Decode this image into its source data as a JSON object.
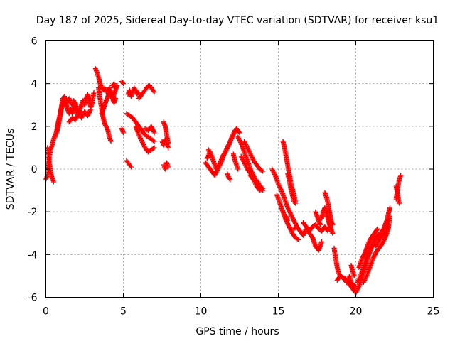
{
  "chart_data": {
    "type": "scatter",
    "title": "Day 187 of 2025, Sidereal Day-to-day VTEC variation (SDTVAR) for receiver ksu1",
    "xlabel": "GPS time / hours",
    "ylabel": "SDTVAR / TECUs",
    "xlim": [
      0,
      25
    ],
    "ylim": [
      -6,
      6
    ],
    "x_ticks": [
      0,
      5,
      10,
      15,
      20,
      25
    ],
    "y_ticks": [
      -6,
      -4,
      -2,
      0,
      2,
      4,
      6
    ],
    "x_tick_labels": [
      "0",
      "5",
      "10",
      "15",
      "20",
      "25"
    ],
    "y_tick_labels": [
      "-6",
      "-4",
      "-2",
      "0",
      "2",
      "4",
      "6"
    ],
    "grid": true,
    "marker": "+",
    "series": [
      {
        "name": "SDTVAR",
        "color": "#ff0000",
        "segments": [
          {
            "x": [
              0.0,
              0.1,
              0.2,
              0.3,
              0.4,
              0.5,
              0.6,
              0.7,
              0.8,
              0.9,
              1.0
            ],
            "y": [
              -0.5,
              -0.3,
              0.4,
              0.9,
              1.1,
              1.4,
              1.6,
              1.7,
              2.0,
              2.4,
              2.8
            ]
          },
          {
            "x": [
              0.1,
              0.2,
              0.3,
              0.4,
              0.5
            ],
            "y": [
              1.0,
              0.5,
              -0.1,
              -0.4,
              -0.6
            ]
          },
          {
            "x": [
              0.6,
              0.7,
              0.8,
              0.9,
              1.0,
              1.1,
              1.2,
              1.3,
              1.4,
              1.5,
              1.6,
              1.7,
              1.8,
              1.9,
              2.0,
              2.1,
              2.2
            ],
            "y": [
              1.5,
              1.8,
              2.2,
              2.5,
              2.8,
              3.0,
              3.2,
              3.3,
              3.2,
              3.3,
              3.1,
              3.0,
              3.2,
              2.9,
              2.7,
              2.5,
              2.7
            ]
          },
          {
            "x": [
              0.9,
              1.0,
              1.1,
              1.2,
              1.3,
              1.4,
              1.5,
              1.6,
              1.7,
              1.8,
              1.9,
              2.0,
              2.1,
              2.2,
              2.3,
              2.4,
              2.5,
              2.6,
              2.7,
              2.8,
              2.9,
              3.0,
              3.1
            ],
            "y": [
              2.5,
              2.9,
              3.3,
              3.4,
              3.1,
              2.8,
              2.6,
              2.8,
              2.6,
              2.9,
              3.1,
              2.8,
              2.6,
              2.8,
              3.0,
              3.2,
              3.0,
              3.3,
              3.5,
              3.2,
              2.9,
              3.1,
              3.6
            ]
          },
          {
            "x": [
              1.5,
              1.7,
              1.9,
              2.1,
              2.3,
              2.5,
              2.7,
              2.9
            ],
            "y": [
              2.2,
              2.4,
              2.3,
              2.6,
              2.4,
              2.7,
              2.5,
              2.8
            ]
          },
          {
            "x": [
              3.2,
              3.3,
              3.4,
              3.5,
              3.6,
              3.7,
              3.8,
              3.9,
              4.0,
              4.1,
              4.2,
              4.3,
              4.4,
              4.5
            ],
            "y": [
              4.7,
              4.5,
              4.3,
              4.0,
              3.8,
              3.7,
              3.8,
              3.6,
              3.7,
              3.8,
              3.6,
              3.3,
              3.1,
              3.3
            ]
          },
          {
            "x": [
              3.4,
              3.5,
              3.6,
              3.7,
              3.8,
              3.9,
              4.0,
              4.1,
              4.2
            ],
            "y": [
              3.8,
              3.3,
              2.8,
              2.4,
              2.1,
              2.0,
              1.8,
              1.5,
              1.3
            ]
          },
          {
            "x": [
              3.6,
              3.7,
              3.8,
              3.9,
              4.0,
              4.1,
              4.2,
              4.3,
              4.4,
              4.5,
              4.6
            ],
            "y": [
              2.6,
              2.8,
              3.0,
              3.2,
              3.4,
              3.6,
              3.5,
              3.3,
              3.5,
              3.7,
              3.9
            ]
          },
          {
            "x": [
              4.3,
              4.4,
              4.5
            ],
            "y": [
              3.9,
              4.0,
              3.8
            ]
          },
          {
            "x": [
              4.9,
              5.0
            ],
            "y": [
              4.1,
              4.0
            ]
          },
          {
            "x": [
              4.9,
              5.0
            ],
            "y": [
              1.9,
              1.7
            ]
          },
          {
            "x": [
              5.2,
              5.3,
              5.4,
              5.5
            ],
            "y": [
              0.4,
              0.3,
              0.2,
              0.1
            ]
          },
          {
            "x": [
              5.3,
              5.4,
              5.5,
              5.6,
              5.7,
              5.8,
              5.9,
              6.0
            ],
            "y": [
              3.5,
              3.7,
              3.4,
              3.6,
              3.8,
              3.7,
              3.5,
              3.6
            ]
          },
          {
            "x": [
              6.0,
              6.1,
              6.2,
              6.3,
              6.4,
              6.5,
              6.6,
              6.7,
              6.8,
              6.9,
              7.0
            ],
            "y": [
              3.3,
              3.4,
              3.5,
              3.6,
              3.7,
              3.8,
              3.9,
              3.9,
              3.8,
              3.7,
              3.6
            ]
          },
          {
            "x": [
              5.2,
              5.4,
              5.6,
              5.8,
              6.0,
              6.2,
              6.4,
              6.6,
              6.8,
              7.0
            ],
            "y": [
              2.6,
              2.5,
              2.4,
              2.2,
              2.0,
              1.8,
              1.6,
              1.5,
              1.4,
              1.3
            ]
          },
          {
            "x": [
              5.8,
              6.0,
              6.2,
              6.4,
              6.6,
              6.8,
              7.0
            ],
            "y": [
              2.0,
              1.6,
              1.3,
              1.0,
              0.8,
              0.9,
              1.0
            ]
          },
          {
            "x": [
              6.4,
              6.6,
              6.8,
              7.0
            ],
            "y": [
              1.9,
              1.8,
              2.0,
              1.7
            ]
          },
          {
            "x": [
              7.6,
              7.7,
              7.8,
              7.9
            ],
            "y": [
              2.2,
              2.0,
              1.6,
              1.2
            ]
          },
          {
            "x": [
              7.5,
              7.6,
              7.7,
              7.8,
              7.9
            ],
            "y": [
              1.3,
              1.1,
              1.4,
              1.2,
              1.0
            ]
          },
          {
            "x": [
              7.6,
              7.7,
              7.8,
              7.9
            ],
            "y": [
              0.2,
              0.0,
              0.3,
              0.1
            ]
          },
          {
            "x": [
              10.3,
              10.5,
              10.7,
              10.9,
              11.1,
              11.3,
              11.5,
              11.7,
              11.9,
              12.1,
              12.3,
              12.5
            ],
            "y": [
              0.3,
              0.1,
              -0.1,
              -0.3,
              0.0,
              0.3,
              0.7,
              1.0,
              1.3,
              1.6,
              1.9,
              1.7
            ]
          },
          {
            "x": [
              10.4,
              10.6,
              10.8,
              11.0,
              11.2,
              11.4,
              11.6,
              11.8,
              12.0,
              12.2
            ],
            "y": [
              0.5,
              0.8,
              0.4,
              0.0,
              0.2,
              0.6,
              0.8,
              1.1,
              1.5,
              1.8
            ]
          },
          {
            "x": [
              10.5,
              10.6,
              10.7
            ],
            "y": [
              0.9,
              0.7,
              0.6
            ]
          },
          {
            "x": [
              11.7,
              11.8,
              11.9
            ],
            "y": [
              -0.2,
              -0.4,
              -0.5
            ]
          },
          {
            "x": [
              12.1,
              12.2,
              12.3,
              12.4
            ],
            "y": [
              0.7,
              0.4,
              0.2,
              0.0
            ]
          },
          {
            "x": [
              12.4,
              12.6,
              12.8,
              13.0,
              13.2,
              13.4,
              13.6,
              13.8,
              14.0
            ],
            "y": [
              1.5,
              1.2,
              0.8,
              0.4,
              0.0,
              -0.3,
              -0.6,
              -0.8,
              -0.9
            ]
          },
          {
            "x": [
              12.6,
              12.8,
              13.0,
              13.2,
              13.4,
              13.6,
              13.8,
              14.0
            ],
            "y": [
              0.6,
              0.3,
              0.0,
              -0.2,
              -0.5,
              -0.8,
              -1.0,
              -0.9
            ]
          },
          {
            "x": [
              12.8,
              13.0,
              13.2,
              13.4,
              13.6,
              13.8,
              14.0
            ],
            "y": [
              1.3,
              1.0,
              0.7,
              0.4,
              0.2,
              0.0,
              -0.1
            ]
          },
          {
            "x": [
              13.2,
              13.4,
              13.6
            ],
            "y": [
              -0.3,
              -0.5,
              -0.6
            ]
          },
          {
            "x": [
              13.7,
              13.8,
              13.9,
              14.0
            ],
            "y": [
              -0.6,
              -0.8,
              -0.9,
              -1.0
            ]
          },
          {
            "x": [
              14.6,
              14.8,
              15.0,
              15.2,
              15.4,
              15.6,
              15.8,
              16.0,
              16.2
            ],
            "y": [
              0.0,
              -0.3,
              -0.7,
              -1.0,
              -1.4,
              -1.8,
              -2.1,
              -2.4,
              -2.7
            ]
          },
          {
            "x": [
              14.9,
              15.1,
              15.3,
              15.5,
              15.7,
              15.9,
              16.1,
              16.3
            ],
            "y": [
              -1.2,
              -1.6,
              -2.0,
              -2.4,
              -2.7,
              -3.0,
              -3.2,
              -3.3
            ]
          },
          {
            "x": [
              15.3,
              15.4,
              15.5,
              15.6,
              15.7,
              15.8,
              15.9,
              16.0,
              16.1
            ],
            "y": [
              1.3,
              1.0,
              0.6,
              0.2,
              -0.2,
              -0.6,
              -0.9,
              -1.2,
              -1.5
            ]
          },
          {
            "x": [
              15.6,
              15.7,
              15.8,
              15.9,
              16.0,
              16.1
            ],
            "y": [
              -0.2,
              -0.5,
              -0.9,
              -1.2,
              -1.5,
              -1.6
            ]
          },
          {
            "x": [
              15.5,
              15.6
            ],
            "y": [
              -2.2,
              -2.4
            ]
          },
          {
            "x": [
              16.0,
              16.2,
              16.4,
              16.6,
              16.8,
              17.0,
              17.2,
              17.4,
              17.6,
              17.8
            ],
            "y": [
              -2.8,
              -2.7,
              -2.9,
              -3.1,
              -2.8,
              -3.0,
              -3.2,
              -3.6,
              -3.8,
              -3.4
            ]
          },
          {
            "x": [
              16.6,
              16.8,
              17.0,
              17.2,
              17.4,
              17.6,
              17.8,
              18.0,
              18.2
            ],
            "y": [
              -2.5,
              -2.7,
              -2.9,
              -2.7,
              -2.6,
              -2.8,
              -2.9,
              -2.7,
              -2.9
            ]
          },
          {
            "x": [
              17.4,
              17.5,
              17.6,
              17.7
            ],
            "y": [
              -2.0,
              -2.2,
              -2.4,
              -2.6
            ]
          },
          {
            "x": [
              17.8,
              17.9,
              18.0,
              18.1,
              18.2,
              18.3,
              18.4,
              18.5
            ],
            "y": [
              -2.3,
              -2.0,
              -1.8,
              -2.1,
              -2.3,
              -2.6,
              -2.8,
              -3.0
            ]
          },
          {
            "x": [
              18.0,
              18.1,
              18.2,
              18.3,
              18.4,
              18.5
            ],
            "y": [
              -1.1,
              -1.3,
              -1.6,
              -2.0,
              -2.4,
              -2.6
            ]
          },
          {
            "x": [
              18.6,
              18.7,
              18.8,
              18.9,
              19.0,
              19.2,
              19.4,
              19.6,
              19.8,
              20.0
            ],
            "y": [
              -3.7,
              -4.2,
              -4.6,
              -4.9,
              -5.0,
              -5.1,
              -5.2,
              -5.3,
              -5.4,
              -5.5
            ]
          },
          {
            "x": [
              18.8,
              19.0,
              19.2,
              19.4,
              19.6,
              19.8,
              20.0
            ],
            "y": [
              -5.2,
              -5.0,
              -5.1,
              -5.3,
              -5.4,
              -5.6,
              -5.8
            ]
          },
          {
            "x": [
              19.3,
              19.4,
              19.5,
              19.6,
              19.7,
              19.8
            ],
            "y": [
              -5.1,
              -5.3,
              -5.2,
              -5.0,
              -5.3,
              -5.4
            ]
          },
          {
            "x": [
              19.7,
              19.8,
              19.9
            ],
            "y": [
              -4.5,
              -4.8,
              -5.0
            ]
          },
          {
            "x": [
              20.0,
              20.2,
              20.4,
              20.6,
              20.8,
              21.0,
              21.2,
              21.4,
              21.6,
              21.8,
              22.0,
              22.2
            ],
            "y": [
              -5.8,
              -5.5,
              -5.1,
              -4.6,
              -4.1,
              -3.7,
              -3.3,
              -3.1,
              -3.0,
              -2.8,
              -2.4,
              -1.8
            ]
          },
          {
            "x": [
              20.1,
              20.3,
              20.5,
              20.7,
              20.9,
              21.1,
              21.3,
              21.5,
              21.7,
              21.9,
              22.1
            ],
            "y": [
              -5.3,
              -5.0,
              -4.6,
              -4.1,
              -3.8,
              -3.5,
              -3.6,
              -3.3,
              -3.1,
              -2.9,
              -2.6
            ]
          },
          {
            "x": [
              20.2,
              20.4,
              20.6,
              20.8,
              21.0,
              21.2,
              21.4
            ],
            "y": [
              -4.6,
              -4.2,
              -3.9,
              -3.5,
              -3.2,
              -3.0,
              -2.8
            ]
          },
          {
            "x": [
              20.5,
              20.7,
              20.9,
              21.1,
              21.3,
              21.5,
              21.7,
              21.9,
              22.1,
              22.2
            ],
            "y": [
              -5.3,
              -5.0,
              -4.6,
              -4.2,
              -3.9,
              -3.7,
              -3.5,
              -3.2,
              -2.8,
              -2.2
            ]
          },
          {
            "x": [
              22.6,
              22.7,
              22.8,
              22.9
            ],
            "y": [
              -1.4,
              -0.9,
              -0.5,
              -0.3
            ]
          },
          {
            "x": [
              22.6,
              22.7,
              22.8
            ],
            "y": [
              -0.8,
              -1.2,
              -1.6
            ]
          }
        ]
      }
    ]
  }
}
